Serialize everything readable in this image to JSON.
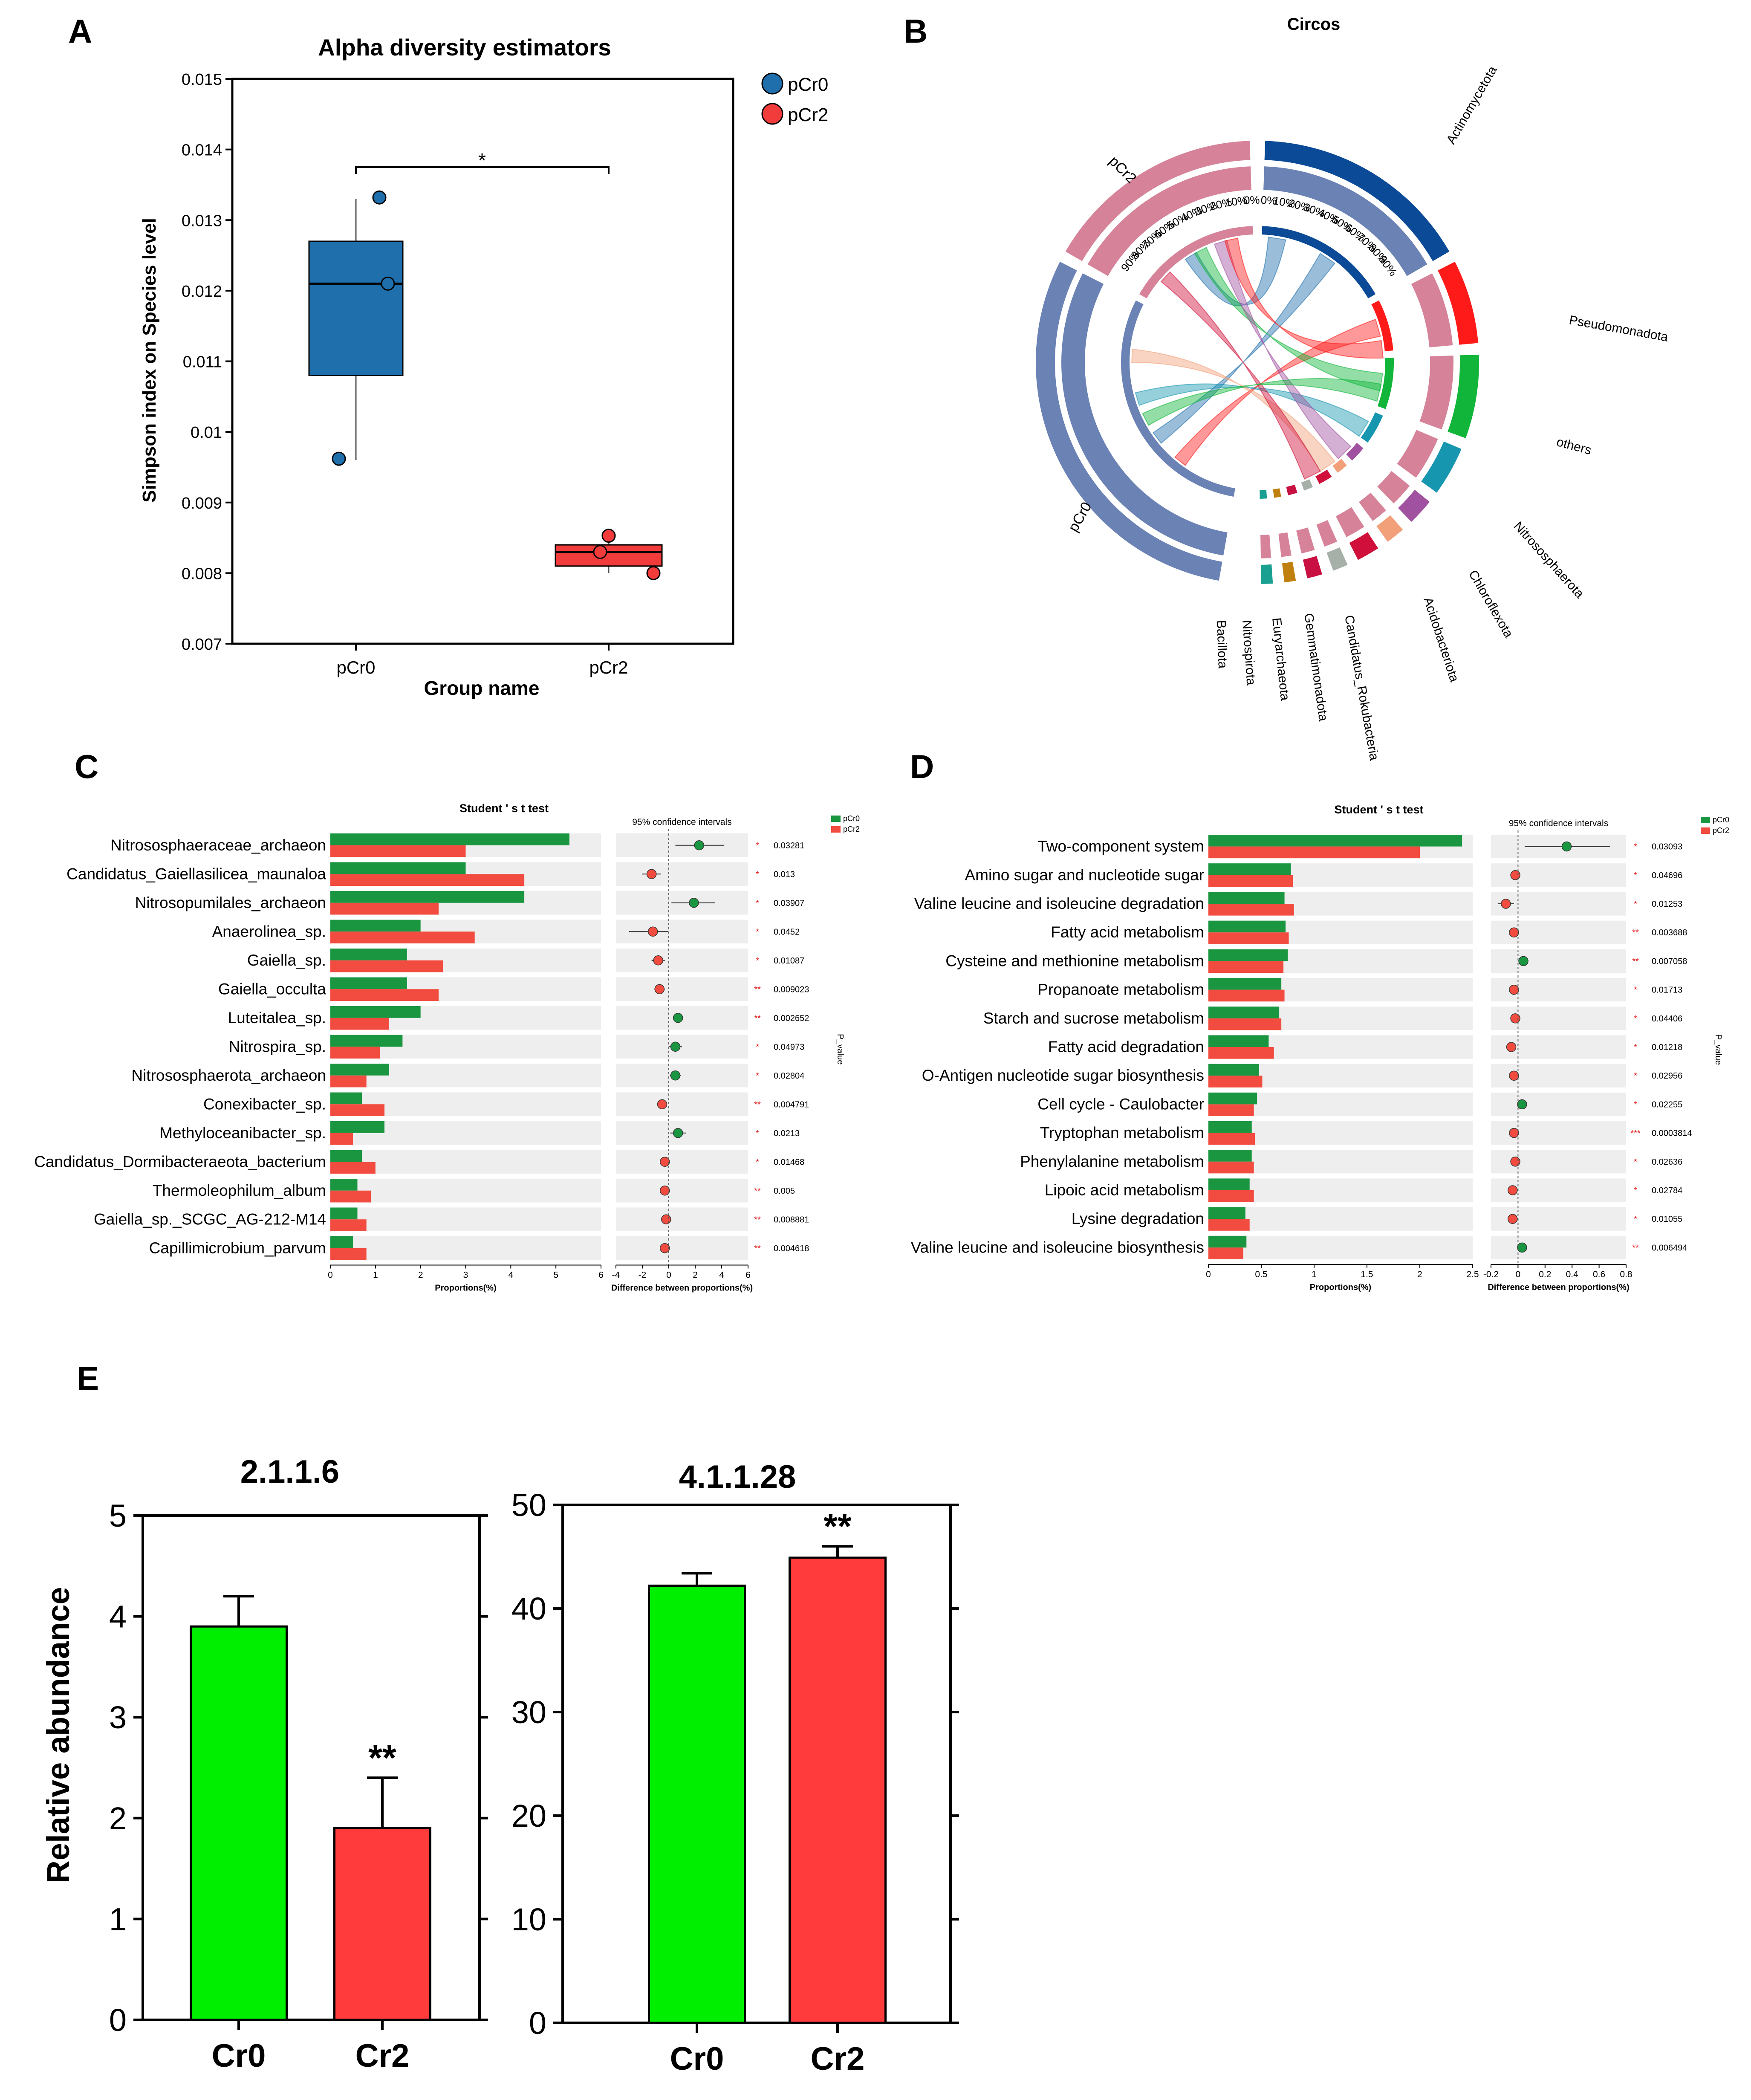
{
  "colors": {
    "pcr0_blue": "#1f6fad",
    "pcr2_red": "#f23c3c",
    "green": "#1a9641",
    "red": "#f24b3f",
    "bright_green": "#00ee00",
    "bright_red": "#ff3b3b",
    "row_bg": "#eeeeee",
    "p_red": "#e31a1c"
  },
  "panel_letters": [
    "A",
    "B",
    "C",
    "D",
    "E"
  ],
  "chart_data": [
    {
      "id": "A",
      "type": "box",
      "title": "Alpha diversity estimators",
      "xlabel": "Group name",
      "ylabel": "Simpson index on Species level",
      "ylim": [
        0.007,
        0.015
      ],
      "yticks": [
        "0.007",
        "0.008",
        "0.009",
        "0.01",
        "0.011",
        "0.012",
        "0.013",
        "0.014",
        "0.015"
      ],
      "groups": [
        {
          "name": "pCr0",
          "q1": 0.0108,
          "median": 0.0121,
          "q3": 0.0127,
          "min": 0.0096,
          "max": 0.0133,
          "points": [
            0.00962,
            0.0121,
            0.01332
          ]
        },
        {
          "name": "pCr2",
          "q1": 0.0081,
          "median": 0.0083,
          "q3": 0.0084,
          "min": 0.008,
          "max": 0.00853,
          "points": [
            0.008,
            0.0083,
            0.00853
          ]
        }
      ],
      "legend": [
        "pCr0",
        "pCr2"
      ],
      "significance": "*"
    },
    {
      "id": "B",
      "type": "circos",
      "title": "Circos",
      "samples": [
        "pCr0",
        "pCr2"
      ],
      "phyla": [
        "Actinomycetota",
        "Pseudomonadota",
        "others",
        "Nitrososphaerota",
        "Chloroflexota",
        "Acidobacteriota",
        "Candidatus_Rokubacteria",
        "Gemmatimonadota",
        "Euryarchaeota",
        "Nitrospirota",
        "Bacillota"
      ],
      "percent_ticks": [
        "0%",
        "10%",
        "20%",
        "30%",
        "40%",
        "50%",
        "60%",
        "70%",
        "80%",
        "90%"
      ]
    },
    {
      "id": "C",
      "type": "extended_error_bar",
      "title": "Student ' s t test",
      "legend": [
        "pCr0",
        "pCr2"
      ],
      "ci_label": "95% confidence intervals",
      "xlabel_left": "Proportions(%)",
      "xlabel_right": "Difference between proportions(%)",
      "p_label": "P_value",
      "xlim_left": [
        0,
        6
      ],
      "xticks_left": [
        "0",
        "1",
        "2",
        "3",
        "4",
        "5",
        "6"
      ],
      "xlim_right": [
        -4,
        6
      ],
      "xticks_right": [
        "-4",
        "-2",
        "0",
        "2",
        "4",
        "6"
      ],
      "rows": [
        {
          "label": "Nitrososphaeraceae_archaeon",
          "pcr0": 5.3,
          "pcr2": 3.0,
          "diff": 2.3,
          "lo": 0.5,
          "hi": 4.2,
          "p": "0.03281",
          "stars": "*"
        },
        {
          "label": "Candidatus_Gaiellasilicea_maunaloa",
          "pcr0": 3.0,
          "pcr2": 4.3,
          "diff": -1.3,
          "lo": -2.0,
          "hi": -0.6,
          "p": "0.013",
          "stars": "*"
        },
        {
          "label": "Nitrosopumilales_archaeon",
          "pcr0": 4.3,
          "pcr2": 2.4,
          "diff": 1.9,
          "lo": 0.2,
          "hi": 3.5,
          "p": "0.03907",
          "stars": "*"
        },
        {
          "label": "Anaerolinea_sp.",
          "pcr0": 2.0,
          "pcr2": 3.2,
          "diff": -1.2,
          "lo": -3.0,
          "hi": -0.05,
          "p": "0.0452",
          "stars": "*"
        },
        {
          "label": "Gaiella_sp.",
          "pcr0": 1.7,
          "pcr2": 2.5,
          "diff": -0.8,
          "lo": -1.3,
          "hi": -0.3,
          "p": "0.01087",
          "stars": "*"
        },
        {
          "label": "Gaiella_occulta",
          "pcr0": 1.7,
          "pcr2": 2.4,
          "diff": -0.7,
          "lo": -1.1,
          "hi": -0.3,
          "p": "0.009023",
          "stars": "**"
        },
        {
          "label": "Luteitalea_sp.",
          "pcr0": 2.0,
          "pcr2": 1.3,
          "diff": 0.7,
          "lo": 0.4,
          "hi": 1.0,
          "p": "0.002652",
          "stars": "**"
        },
        {
          "label": "Nitrospira_sp.",
          "pcr0": 1.6,
          "pcr2": 1.1,
          "diff": 0.5,
          "lo": 0.0,
          "hi": 1.0,
          "p": "0.04973",
          "stars": "*"
        },
        {
          "label": "Nitrososphaerota_archaeon",
          "pcr0": 1.3,
          "pcr2": 0.8,
          "diff": 0.5,
          "lo": 0.1,
          "hi": 0.9,
          "p": "0.02804",
          "stars": "*"
        },
        {
          "label": "Conexibacter_sp.",
          "pcr0": 0.7,
          "pcr2": 1.2,
          "diff": -0.5,
          "lo": -0.7,
          "hi": -0.3,
          "p": "0.004791",
          "stars": "**"
        },
        {
          "label": "Methyloceanibacter_sp.",
          "pcr0": 1.2,
          "pcr2": 0.5,
          "diff": 0.7,
          "lo": 0.1,
          "hi": 1.3,
          "p": "0.0213",
          "stars": "*"
        },
        {
          "label": "Candidatus_Dormibacteraeota_bacterium",
          "pcr0": 0.7,
          "pcr2": 1.0,
          "diff": -0.3,
          "lo": -0.5,
          "hi": -0.1,
          "p": "0.01468",
          "stars": "*"
        },
        {
          "label": "Thermoleophilum_album",
          "pcr0": 0.6,
          "pcr2": 0.9,
          "diff": -0.3,
          "lo": -0.5,
          "hi": -0.1,
          "p": "0.005",
          "stars": "**"
        },
        {
          "label": "Gaiella_sp._SCGC_AG-212-M14",
          "pcr0": 0.6,
          "pcr2": 0.8,
          "diff": -0.2,
          "lo": -0.3,
          "hi": -0.1,
          "p": "0.008881",
          "stars": "**"
        },
        {
          "label": "Capillimicrobium_parvum",
          "pcr0": 0.5,
          "pcr2": 0.8,
          "diff": -0.3,
          "lo": -0.4,
          "hi": -0.1,
          "p": "0.004618",
          "stars": "**"
        }
      ]
    },
    {
      "id": "D",
      "type": "extended_error_bar",
      "title": "Student ' s t test",
      "legend": [
        "pCr0",
        "pCr2"
      ],
      "ci_label": "95% confidence intervals",
      "xlabel_left": "Proportions(%)",
      "xlabel_right": "Difference between proportions(%)",
      "p_label": "P_value",
      "xlim_left": [
        0,
        2.5
      ],
      "xticks_left": [
        "0",
        "0.5",
        "1",
        "1.5",
        "2",
        "2.5"
      ],
      "xlim_right": [
        -0.2,
        0.8
      ],
      "xticks_right": [
        "-0.2",
        "0",
        "0.2",
        "0.4",
        "0.6",
        "0.8"
      ],
      "rows": [
        {
          "label": "Two-component system",
          "pcr0": 2.4,
          "pcr2": 2.0,
          "diff": 0.36,
          "lo": 0.05,
          "hi": 0.68,
          "p": "0.03093",
          "stars": "*"
        },
        {
          "label": "Amino sugar and nucleotide sugar",
          "pcr0": 0.78,
          "pcr2": 0.8,
          "diff": -0.02,
          "lo": -0.035,
          "hi": -0.005,
          "p": "0.04696",
          "stars": "*"
        },
        {
          "label": "Valine leucine and isoleucine degradation",
          "pcr0": 0.72,
          "pcr2": 0.81,
          "diff": -0.09,
          "lo": -0.15,
          "hi": -0.03,
          "p": "0.01253",
          "stars": "*"
        },
        {
          "label": "Fatty acid metabolism",
          "pcr0": 0.73,
          "pcr2": 0.76,
          "diff": -0.03,
          "lo": -0.045,
          "hi": -0.015,
          "p": "0.003688",
          "stars": "**"
        },
        {
          "label": "Cysteine and methionine metabolism",
          "pcr0": 0.75,
          "pcr2": 0.71,
          "diff": 0.04,
          "lo": 0.02,
          "hi": 0.06,
          "p": "0.007058",
          "stars": "**"
        },
        {
          "label": "Propanoate metabolism",
          "pcr0": 0.69,
          "pcr2": 0.72,
          "diff": -0.03,
          "lo": -0.05,
          "hi": -0.01,
          "p": "0.01713",
          "stars": "*"
        },
        {
          "label": "Starch and sucrose metabolism",
          "pcr0": 0.67,
          "pcr2": 0.69,
          "diff": -0.02,
          "lo": -0.035,
          "hi": -0.005,
          "p": "0.04406",
          "stars": "*"
        },
        {
          "label": "Fatty acid degradation",
          "pcr0": 0.57,
          "pcr2": 0.62,
          "diff": -0.05,
          "lo": -0.08,
          "hi": -0.02,
          "p": "0.01218",
          "stars": "*"
        },
        {
          "label": "O-Antigen nucleotide sugar biosynthesis",
          "pcr0": 0.48,
          "pcr2": 0.51,
          "diff": -0.03,
          "lo": -0.05,
          "hi": -0.01,
          "p": "0.02956",
          "stars": "*"
        },
        {
          "label": "Cell cycle - Caulobacter",
          "pcr0": 0.46,
          "pcr2": 0.43,
          "diff": 0.03,
          "lo": 0.01,
          "hi": 0.05,
          "p": "0.02255",
          "stars": "*"
        },
        {
          "label": "Tryptophan metabolism",
          "pcr0": 0.41,
          "pcr2": 0.44,
          "diff": -0.03,
          "lo": -0.04,
          "hi": -0.02,
          "p": "0.0003814",
          "stars": "***"
        },
        {
          "label": "Phenylalanine metabolism",
          "pcr0": 0.41,
          "pcr2": 0.43,
          "diff": -0.02,
          "lo": -0.035,
          "hi": -0.005,
          "p": "0.02636",
          "stars": "*"
        },
        {
          "label": "Lipoic acid metabolism",
          "pcr0": 0.39,
          "pcr2": 0.43,
          "diff": -0.04,
          "lo": -0.07,
          "hi": -0.01,
          "p": "0.02784",
          "stars": "*"
        },
        {
          "label": "Lysine degradation",
          "pcr0": 0.35,
          "pcr2": 0.39,
          "diff": -0.04,
          "lo": -0.07,
          "hi": -0.01,
          "p": "0.01055",
          "stars": "*"
        },
        {
          "label": "Valine leucine and isoleucine biosynthesis",
          "pcr0": 0.36,
          "pcr2": 0.33,
          "diff": 0.03,
          "lo": 0.01,
          "hi": 0.05,
          "p": "0.006494",
          "stars": "**"
        }
      ]
    },
    {
      "id": "E1",
      "type": "bar",
      "title": "2.1.1.6",
      "ylabel": "Relative abundance",
      "categories": [
        "Cr0",
        "Cr2"
      ],
      "values": [
        3.9,
        1.9
      ],
      "errors": [
        0.3,
        0.5
      ],
      "ylim": [
        0,
        5
      ],
      "yticks": [
        "0",
        "1",
        "2",
        "3",
        "4",
        "5"
      ],
      "annotations": [
        "",
        "**"
      ]
    },
    {
      "id": "E2",
      "type": "bar",
      "title": "4.1.1.28",
      "ylabel": "",
      "categories": [
        "Cr0",
        "Cr2"
      ],
      "values": [
        42.2,
        44.9
      ],
      "errors": [
        1.2,
        1.1
      ],
      "ylim": [
        0,
        50
      ],
      "yticks": [
        "0",
        "10",
        "20",
        "30",
        "40",
        "50"
      ],
      "annotations": [
        "",
        "**"
      ]
    }
  ]
}
